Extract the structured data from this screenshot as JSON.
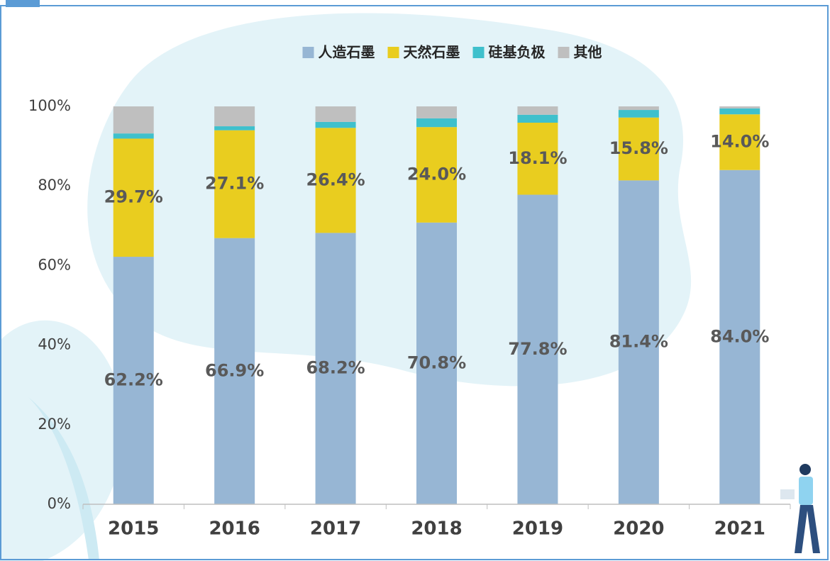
{
  "chart_data": {
    "type": "stacked_bar",
    "categories": [
      "2015",
      "2016",
      "2017",
      "2018",
      "2019",
      "2020",
      "2021"
    ],
    "series": [
      {
        "name": "人造石墨",
        "color": "#97b6d4",
        "values": [
          62.2,
          66.9,
          68.2,
          70.8,
          77.8,
          81.4,
          84.0
        ],
        "value_labels": [
          "62.2%",
          "66.9%",
          "68.2%",
          "70.8%",
          "77.8%",
          "81.4%",
          "84.0%"
        ]
      },
      {
        "name": "天然石墨",
        "color": "#e9cd1f",
        "values": [
          29.7,
          27.1,
          26.4,
          24.0,
          18.1,
          15.8,
          14.0
        ],
        "value_labels": [
          "29.7%",
          "27.1%",
          "26.4%",
          "24.0%",
          "18.1%",
          "15.8%",
          "14.0%"
        ]
      },
      {
        "name": "硅基负极",
        "color": "#3fc0cc",
        "values": [
          1.3,
          1.0,
          1.5,
          2.2,
          2.0,
          1.9,
          1.5
        ]
      },
      {
        "name": "其他",
        "color": "#bfbfbf",
        "values": [
          6.8,
          5.0,
          3.9,
          3.0,
          2.1,
          0.9,
          0.5
        ]
      }
    ],
    "ylim": [
      0,
      100
    ],
    "yticks": [
      {
        "value": 0,
        "label": "0%"
      },
      {
        "value": 20,
        "label": "20%"
      },
      {
        "value": 40,
        "label": "40%"
      },
      {
        "value": 60,
        "label": "60%"
      },
      {
        "value": 80,
        "label": "80%"
      },
      {
        "value": 100,
        "label": "100%"
      }
    ],
    "legend": "top"
  }
}
